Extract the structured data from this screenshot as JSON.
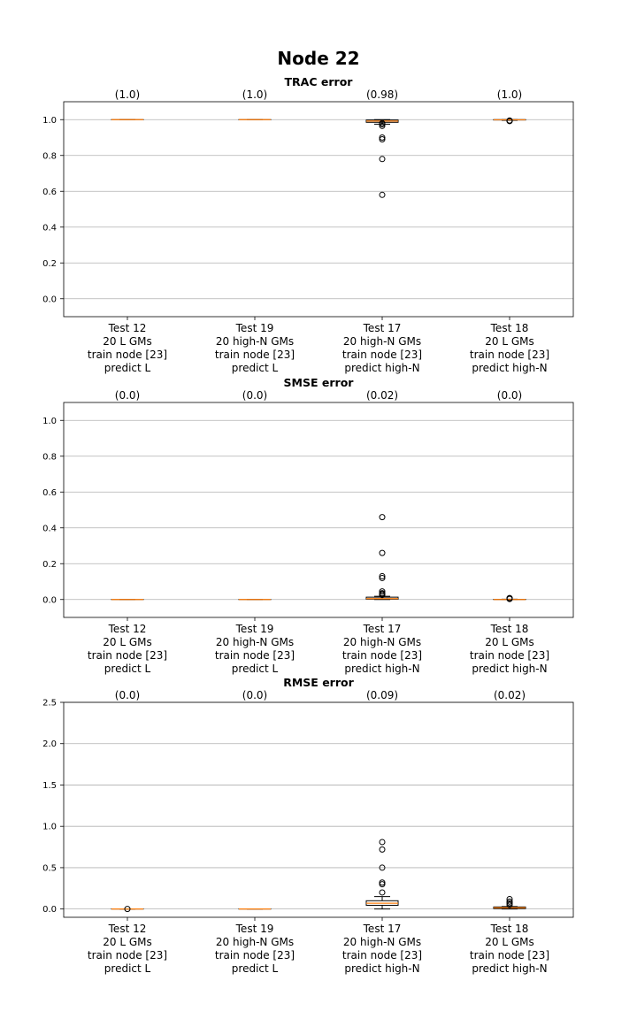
{
  "figure": {
    "title": "Node 22"
  },
  "chart_data": [
    {
      "type": "box",
      "title": "TRAC error",
      "ylim": [
        -0.1,
        1.1
      ],
      "yticks": [
        "0.0",
        "0.2",
        "0.4",
        "0.6",
        "0.8",
        "1.0"
      ],
      "ytick_values": [
        0.0,
        0.2,
        0.4,
        0.6,
        0.8,
        1.0
      ],
      "grid": true,
      "categories": [
        {
          "lines": [
            "Test 12",
            "20 L GMs",
            "train node [23]",
            "predict L"
          ],
          "median_label": "(1.0)",
          "box": {
            "q1": 1.0,
            "median": 1.0,
            "q3": 1.0,
            "whisker_low": 1.0,
            "whisker_high": 1.0
          },
          "outliers": []
        },
        {
          "lines": [
            "Test 19",
            "20 high-N GMs",
            "train node [23]",
            "predict L"
          ],
          "median_label": "(1.0)",
          "box": {
            "q1": 1.0,
            "median": 1.0,
            "q3": 1.0,
            "whisker_low": 1.0,
            "whisker_high": 1.0
          },
          "outliers": []
        },
        {
          "lines": [
            "Test 17",
            "20 high-N GMs",
            "train node [23]",
            "predict high-N"
          ],
          "median_label": "(0.98)",
          "box": {
            "q1": 0.985,
            "median": 0.992,
            "q3": 0.998,
            "whisker_low": 0.975,
            "whisker_high": 1.0
          },
          "outliers": [
            0.98,
            0.975,
            0.965,
            0.9,
            0.89,
            0.78,
            0.58
          ]
        },
        {
          "lines": [
            "Test 18",
            "20 L GMs",
            "train node [23]",
            "predict high-N"
          ],
          "median_label": "(1.0)",
          "box": {
            "q1": 0.998,
            "median": 0.999,
            "q3": 1.0,
            "whisker_low": 0.996,
            "whisker_high": 1.0
          },
          "outliers": [
            0.995,
            0.993,
            0.992
          ]
        }
      ]
    },
    {
      "type": "box",
      "title": "SMSE error",
      "ylim": [
        -0.1,
        1.1
      ],
      "yticks": [
        "0.0",
        "0.2",
        "0.4",
        "0.6",
        "0.8",
        "1.0"
      ],
      "ytick_values": [
        0.0,
        0.2,
        0.4,
        0.6,
        0.8,
        1.0
      ],
      "grid": true,
      "categories": [
        {
          "lines": [
            "Test 12",
            "20 L GMs",
            "train node [23]",
            "predict L"
          ],
          "median_label": "(0.0)",
          "box": {
            "q1": 0.0,
            "median": 0.0,
            "q3": 0.0,
            "whisker_low": 0.0,
            "whisker_high": 0.0
          },
          "outliers": []
        },
        {
          "lines": [
            "Test 19",
            "20 high-N GMs",
            "train node [23]",
            "predict L"
          ],
          "median_label": "(0.0)",
          "box": {
            "q1": 0.0,
            "median": 0.0,
            "q3": 0.0,
            "whisker_low": 0.0,
            "whisker_high": 0.0
          },
          "outliers": []
        },
        {
          "lines": [
            "Test 17",
            "20 high-N GMs",
            "train node [23]",
            "predict high-N"
          ],
          "median_label": "(0.02)",
          "box": {
            "q1": 0.002,
            "median": 0.005,
            "q3": 0.013,
            "whisker_low": 0.0,
            "whisker_high": 0.018
          },
          "outliers": [
            0.46,
            0.26,
            0.13,
            0.12,
            0.045,
            0.035,
            0.03,
            0.025
          ]
        },
        {
          "lines": [
            "Test 18",
            "20 L GMs",
            "train node [23]",
            "predict high-N"
          ],
          "median_label": "(0.0)",
          "box": {
            "q1": 0.0,
            "median": 0.0,
            "q3": 0.001,
            "whisker_low": 0.0,
            "whisker_high": 0.002
          },
          "outliers": [
            0.008,
            0.005,
            0.003
          ]
        }
      ]
    },
    {
      "type": "box",
      "title": "RMSE error",
      "ylim": [
        -0.1,
        2.5
      ],
      "yticks": [
        "0.0",
        "0.5",
        "1.0",
        "1.5",
        "2.0",
        "2.5"
      ],
      "ytick_values": [
        0.0,
        0.5,
        1.0,
        1.5,
        2.0,
        2.5
      ],
      "grid": true,
      "categories": [
        {
          "lines": [
            "Test 12",
            "20 L GMs",
            "train node [23]",
            "predict L"
          ],
          "median_label": "(0.0)",
          "box": {
            "q1": 0.0,
            "median": 0.0,
            "q3": 0.0,
            "whisker_low": 0.0,
            "whisker_high": 0.0
          },
          "outliers": [
            0.0
          ]
        },
        {
          "lines": [
            "Test 19",
            "20 high-N GMs",
            "train node [23]",
            "predict L"
          ],
          "median_label": "(0.0)",
          "box": {
            "q1": 0.0,
            "median": 0.0,
            "q3": 0.0,
            "whisker_low": 0.0,
            "whisker_high": 0.0
          },
          "outliers": []
        },
        {
          "lines": [
            "Test 17",
            "20 high-N GMs",
            "train node [23]",
            "predict high-N"
          ],
          "median_label": "(0.09)",
          "box": {
            "q1": 0.045,
            "median": 0.07,
            "q3": 0.1,
            "whisker_low": 0.0,
            "whisker_high": 0.15
          },
          "outliers": [
            0.81,
            0.72,
            0.5,
            0.32,
            0.3,
            0.2
          ]
        },
        {
          "lines": [
            "Test 18",
            "20 L GMs",
            "train node [23]",
            "predict high-N"
          ],
          "median_label": "(0.02)",
          "box": {
            "q1": 0.005,
            "median": 0.015,
            "q3": 0.025,
            "whisker_low": 0.0,
            "whisker_high": 0.03
          },
          "outliers": [
            0.12,
            0.09,
            0.07,
            0.05
          ]
        }
      ]
    }
  ]
}
